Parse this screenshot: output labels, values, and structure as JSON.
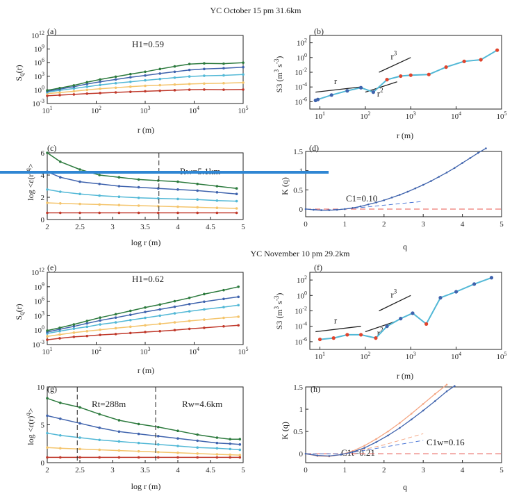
{
  "colors": {
    "q1": "#c0392b",
    "q2": "#f4c46b",
    "q3": "#52b8d6",
    "q4": "#3f63ad",
    "q5": "#2c7a3d",
    "s3": "#52b8d6",
    "s3_marker": "#e0442d",
    "fit": "#3f63ad",
    "fit_dash": "#4f79d6",
    "baseline": "#e8554e",
    "c1t_curve": "#f4a582",
    "overlay_bar": "#2f86d3"
  },
  "section_titles": [
    "YC October 15 pm  31.6km",
    "YC November 10 pm  29.2km"
  ],
  "chart_data": [
    {
      "id": "a",
      "type": "line",
      "panel_label": "(a)",
      "annotation": "H1=0.59",
      "xlabel": "r (m)",
      "ylabel": "S_q(r)",
      "ylabel_main": "S",
      "ylabel_sub": "q",
      "ylabel_rest": "(r)",
      "xscale": "log",
      "yscale": "log",
      "xlim": [
        10,
        100000
      ],
      "ylim": [
        0.001,
        1000000000000.0
      ],
      "x_ticks": [
        {
          "v": 10,
          "b": "10",
          "e": "1"
        },
        {
          "v": 100,
          "b": "10",
          "e": "2"
        },
        {
          "v": 1000,
          "b": "10",
          "e": "3"
        },
        {
          "v": 10000,
          "b": "10",
          "e": "4"
        },
        {
          "v": 100000,
          "b": "10",
          "e": "5"
        }
      ],
      "y_ticks": [
        {
          "v": 0.001,
          "b": "10",
          "e": "-3"
        },
        {
          "v": 1,
          "b": "10",
          "e": "0"
        },
        {
          "v": 1000,
          "b": "10",
          "e": "3"
        },
        {
          "v": 1000000,
          "b": "10",
          "e": "6"
        },
        {
          "v": 1000000000,
          "b": "10",
          "e": "9"
        },
        {
          "v": 1000000000000.0,
          "b": "10",
          "e": "12"
        }
      ],
      "x": [
        10,
        18,
        35,
        65,
        120,
        250,
        500,
        1000,
        2000,
        4000,
        8000,
        16000,
        40000,
        100000
      ],
      "series": [
        {
          "values": [
            0.05,
            0.07,
            0.1,
            0.15,
            0.2,
            0.28,
            0.38,
            0.5,
            0.65,
            0.85,
            1.1,
            1.2,
            1.1,
            1.2
          ]
        },
        {
          "values": [
            0.15,
            0.25,
            0.5,
            1,
            1.8,
            3,
            5,
            8,
            11,
            15,
            20,
            25,
            30,
            40
          ]
        },
        {
          "values": [
            0.3,
            0.8,
            2,
            5,
            12,
            30,
            60,
            130,
            250,
            500,
            900,
            1300,
            1600,
            2500
          ]
        },
        {
          "values": [
            0.5,
            1.5,
            5,
            20,
            60,
            200,
            600,
            1500,
            4000,
            10000,
            25000,
            40000,
            60000,
            100000
          ]
        },
        {
          "values": [
            0.8,
            2.5,
            10,
            50,
            200,
            800,
            3000,
            10000,
            40000,
            150000,
            500000,
            700000,
            600000,
            1000000
          ]
        }
      ]
    },
    {
      "id": "b",
      "type": "line",
      "panel_label": "(b)",
      "xlabel": "r (m)",
      "ylabel": "S3 (m^3 s^-3)",
      "ylabel_pre": "S3 (m",
      "ylabel_exp1": "3",
      "ylabel_mid": " s",
      "ylabel_exp2": "-3",
      "ylabel_post": ")",
      "xscale": "log",
      "yscale": "log",
      "xlim": [
        6,
        100000
      ],
      "ylim": [
        1e-07,
        1000
      ],
      "x_ticks": [
        {
          "v": 10,
          "b": "10",
          "e": "1"
        },
        {
          "v": 100,
          "b": "10",
          "e": "2"
        },
        {
          "v": 1000,
          "b": "10",
          "e": "3"
        },
        {
          "v": 10000,
          "b": "10",
          "e": "4"
        },
        {
          "v": 100000,
          "b": "10",
          "e": "5"
        }
      ],
      "y_ticks": [
        {
          "v": 1e-06,
          "b": "10",
          "e": "-6"
        },
        {
          "v": 0.0001,
          "b": "10",
          "e": "-4"
        },
        {
          "v": 0.01,
          "b": "10",
          "e": "-2"
        },
        {
          "v": 1,
          "b": "10",
          "e": "0"
        },
        {
          "v": 100,
          "b": "10",
          "e": "2"
        }
      ],
      "x": [
        8,
        9,
        18,
        40,
        80,
        150,
        300,
        600,
        1000,
        2500,
        6000,
        15000,
        35000,
        80000
      ],
      "values": [
        1.5e-06,
        2e-06,
        8e-06,
        3e-05,
        8e-05,
        2e-05,
        0.001,
        0.003,
        0.004,
        0.005,
        0.05,
        0.3,
        0.5,
        10
      ],
      "markers": [
        0,
        0,
        0,
        0,
        0,
        0,
        1,
        1,
        1,
        1,
        1,
        1,
        1,
        1
      ],
      "ref_lines": [
        {
          "label": "r",
          "exp_label": "",
          "x": [
            8,
            80
          ],
          "y": [
            2e-05,
            0.0001
          ]
        },
        {
          "label": "r",
          "exp_label": "2",
          "x": [
            100,
            500
          ],
          "y": [
            2e-05,
            0.0005
          ]
        },
        {
          "label": "r",
          "exp_label": "3",
          "x": [
            200,
            1000
          ],
          "y": [
            0.01,
            1
          ]
        }
      ]
    },
    {
      "id": "c",
      "type": "line",
      "panel_label": "(c)",
      "annotation": "Rw=5.1km",
      "xlabel": "log r (m)",
      "ylabel": "log <ε(r)^q>",
      "ylabel_text": "log <ε(r)",
      "ylabel_exp": "q",
      "ylabel_end": ">",
      "xlim": [
        2,
        5
      ],
      "ylim": [
        0,
        6
      ],
      "x_ticks": [
        2,
        2.5,
        3,
        3.5,
        4,
        4.5,
        5
      ],
      "y_ticks": [
        0,
        2,
        4,
        6
      ],
      "vlines": [
        3.71
      ],
      "x": [
        2,
        2.2,
        2.5,
        2.8,
        3.1,
        3.4,
        3.7,
        4.0,
        4.3,
        4.6,
        4.9
      ],
      "series": [
        {
          "values": [
            0.6,
            0.6,
            0.6,
            0.6,
            0.6,
            0.6,
            0.6,
            0.6,
            0.6,
            0.6,
            0.6
          ]
        },
        {
          "values": [
            1.5,
            1.45,
            1.4,
            1.35,
            1.3,
            1.25,
            1.2,
            1.15,
            1.1,
            1.05,
            1.0
          ]
        },
        {
          "values": [
            2.7,
            2.5,
            2.3,
            2.15,
            2.05,
            1.95,
            1.9,
            1.85,
            1.8,
            1.7,
            1.65
          ]
        },
        {
          "values": [
            4.3,
            3.8,
            3.4,
            3.2,
            3.0,
            2.9,
            2.8,
            2.7,
            2.6,
            2.45,
            2.3
          ]
        },
        {
          "values": [
            6.0,
            5.2,
            4.5,
            4.0,
            3.8,
            3.6,
            3.5,
            3.4,
            3.2,
            3.0,
            2.8
          ]
        }
      ]
    },
    {
      "id": "d",
      "type": "line",
      "panel_label": "(d)",
      "annotation": "C1=0.10",
      "xlabel": "q",
      "ylabel": "K (q)",
      "xlim": [
        0,
        5
      ],
      "ylim": [
        -0.2,
        1.5
      ],
      "x_ticks": [
        0,
        1,
        2,
        3,
        4,
        5
      ],
      "y_ticks": [
        0,
        0.5,
        1,
        1.5
      ],
      "x": [
        0,
        0.2,
        0.4,
        0.6,
        0.8,
        1.0,
        1.2,
        1.4,
        1.6,
        1.8,
        2.0,
        2.2,
        2.4,
        2.6,
        2.8,
        3.0,
        3.2,
        3.4,
        3.6,
        3.8,
        4.0,
        4.2,
        4.4,
        4.6
      ],
      "values": [
        0,
        -0.02,
        -0.03,
        -0.03,
        -0.02,
        0,
        0.03,
        0.07,
        0.12,
        0.17,
        0.23,
        0.3,
        0.37,
        0.45,
        0.54,
        0.63,
        0.73,
        0.84,
        0.95,
        1.07,
        1.2,
        1.33,
        1.46,
        1.58
      ],
      "fit_x": [
        0,
        0.5,
        1.0,
        1.5,
        2.0,
        2.5,
        3.0
      ],
      "fit_values": [
        0,
        -0.025,
        0,
        0.05,
        0.1,
        0.15,
        0.2
      ],
      "baseline": 0
    },
    {
      "id": "e",
      "type": "line",
      "panel_label": "(e)",
      "annotation": "H1=0.62",
      "xlabel": "r (m)",
      "ylabel": "S_q(r)",
      "ylabel_main": "S",
      "ylabel_sub": "q",
      "ylabel_rest": "(r)",
      "xscale": "log",
      "yscale": "log",
      "xlim": [
        10,
        100000
      ],
      "ylim": [
        0.001,
        1000000000000.0
      ],
      "x_ticks": [
        {
          "v": 10,
          "b": "10",
          "e": "1"
        },
        {
          "v": 100,
          "b": "10",
          "e": "2"
        },
        {
          "v": 1000,
          "b": "10",
          "e": "3"
        },
        {
          "v": 10000,
          "b": "10",
          "e": "4"
        },
        {
          "v": 100000,
          "b": "10",
          "e": "5"
        }
      ],
      "y_ticks": [
        {
          "v": 0.001,
          "b": "10",
          "e": "-3"
        },
        {
          "v": 1,
          "b": "10",
          "e": "0"
        },
        {
          "v": 1000,
          "b": "10",
          "e": "3"
        },
        {
          "v": 1000000,
          "b": "10",
          "e": "6"
        },
        {
          "v": 1000000000,
          "b": "10",
          "e": "9"
        },
        {
          "v": 1000000000000.0,
          "b": "10",
          "e": "12"
        }
      ],
      "x": [
        10,
        18,
        35,
        65,
        120,
        250,
        500,
        1000,
        2000,
        4000,
        8000,
        16000,
        40000,
        80000
      ],
      "series": [
        {
          "values": [
            0.01,
            0.02,
            0.04,
            0.06,
            0.1,
            0.15,
            0.25,
            0.4,
            0.6,
            1,
            1.8,
            3,
            6,
            10
          ]
        },
        {
          "values": [
            0.05,
            0.12,
            0.3,
            0.6,
            1.2,
            2.5,
            5,
            10,
            20,
            40,
            80,
            150,
            350,
            600
          ]
        },
        {
          "values": [
            0.2,
            0.6,
            2,
            5,
            15,
            40,
            120,
            350,
            1000,
            3000,
            8000,
            20000,
            60000,
            150000
          ]
        },
        {
          "values": [
            0.4,
            1.5,
            6,
            25,
            100,
            400,
            1500,
            6000,
            20000,
            70000,
            250000,
            800000,
            3000000,
            8000000
          ]
        },
        {
          "values": [
            0.8,
            3,
            15,
            80,
            400,
            2000,
            10000,
            50000,
            200000,
            1000000,
            5000000,
            30000000,
            200000000,
            1000000000
          ]
        }
      ]
    },
    {
      "id": "f",
      "type": "line",
      "panel_label": "(f)",
      "xlabel": "r (m)",
      "ylabel": "S3 (m^3 s^-3)",
      "ylabel_pre": "S3 (m",
      "ylabel_exp1": "3",
      "ylabel_mid": " s",
      "ylabel_exp2": "-3",
      "ylabel_post": ")",
      "xscale": "log",
      "yscale": "log",
      "xlim": [
        6,
        100000
      ],
      "ylim": [
        1e-07,
        1000
      ],
      "x_ticks": [
        {
          "v": 10,
          "b": "10",
          "e": "1"
        },
        {
          "v": 100,
          "b": "10",
          "e": "2"
        },
        {
          "v": 1000,
          "b": "10",
          "e": "3"
        },
        {
          "v": 10000,
          "b": "10",
          "e": "4"
        },
        {
          "v": 100000,
          "b": "10",
          "e": "5"
        }
      ],
      "y_ticks": [
        {
          "v": 1e-06,
          "b": "10",
          "e": "-6"
        },
        {
          "v": 0.0001,
          "b": "10",
          "e": "-4"
        },
        {
          "v": 0.01,
          "b": "10",
          "e": "-2"
        },
        {
          "v": 1,
          "b": "10",
          "e": "0"
        },
        {
          "v": 100,
          "b": "10",
          "e": "2"
        }
      ],
      "x": [
        10,
        20,
        40,
        80,
        170,
        300,
        600,
        1100,
        2200,
        4500,
        10000,
        25000,
        60000
      ],
      "values": [
        2e-06,
        3e-06,
        8e-06,
        8e-06,
        3e-06,
        0.0001,
        0.001,
        0.005,
        0.0002,
        0.5,
        3,
        30,
        200
      ],
      "markers": [
        1,
        1,
        1,
        1,
        1,
        0,
        0,
        0,
        1,
        0,
        0,
        0,
        0
      ],
      "ref_lines": [
        {
          "label": "r",
          "exp_label": "",
          "x": [
            8,
            80
          ],
          "y": [
            2e-05,
            0.0001
          ]
        },
        {
          "label": "r",
          "exp_label": "2",
          "x": [
            100,
            500
          ],
          "y": [
            2e-05,
            0.0005
          ]
        },
        {
          "label": "r",
          "exp_label": "3",
          "x": [
            200,
            1000
          ],
          "y": [
            0.01,
            1
          ]
        }
      ]
    },
    {
      "id": "g",
      "type": "line",
      "panel_label": "(g)",
      "annotation": "Rt=288m",
      "annotation2": "Rw=4.6km",
      "xlabel": "log r (m)",
      "ylabel": "log <ε(r)^q>",
      "ylabel_text": "log <ε(r)",
      "ylabel_exp": "q",
      "ylabel_end": ">",
      "xlim": [
        2,
        5
      ],
      "ylim": [
        0,
        10
      ],
      "x_ticks": [
        2,
        2.5,
        3,
        3.5,
        4,
        4.5,
        5
      ],
      "y_ticks": [
        0,
        5,
        10
      ],
      "vlines": [
        2.46,
        3.66
      ],
      "x": [
        2,
        2.2,
        2.5,
        2.8,
        3.1,
        3.4,
        3.7,
        4.0,
        4.3,
        4.6,
        4.8,
        4.95
      ],
      "series": [
        {
          "values": [
            0.7,
            0.7,
            0.7,
            0.7,
            0.7,
            0.7,
            0.7,
            0.7,
            0.7,
            0.7,
            0.7,
            0.7
          ]
        },
        {
          "values": [
            2.0,
            1.9,
            1.8,
            1.7,
            1.6,
            1.5,
            1.4,
            1.3,
            1.2,
            1.1,
            1.05,
            1.0
          ]
        },
        {
          "values": [
            3.9,
            3.6,
            3.3,
            3.0,
            2.8,
            2.6,
            2.4,
            2.2,
            2.0,
            1.9,
            1.8,
            1.7
          ]
        },
        {
          "values": [
            6.2,
            5.8,
            5.2,
            4.6,
            4.1,
            3.8,
            3.5,
            3.2,
            2.9,
            2.6,
            2.5,
            2.4
          ]
        },
        {
          "values": [
            8.5,
            7.9,
            7.3,
            6.4,
            5.6,
            5.1,
            4.7,
            4.2,
            3.7,
            3.3,
            3.1,
            3.1
          ]
        }
      ]
    },
    {
      "id": "h",
      "type": "line",
      "panel_label": "(h)",
      "annotation": "C1t=0.21",
      "annotation2": "C1w=0.16",
      "xlabel": "q",
      "ylabel": "K (q)",
      "xlim": [
        0,
        5
      ],
      "ylim": [
        -0.2,
        1.5
      ],
      "x_ticks": [
        0,
        1,
        2,
        3,
        4,
        5
      ],
      "y_ticks": [
        0,
        0.5,
        1,
        1.5
      ],
      "x_t": [
        0,
        0.3,
        0.6,
        0.9,
        1.2,
        1.5,
        1.8,
        2.1,
        2.4,
        2.7,
        3.0,
        3.3,
        3.6
      ],
      "values_t": [
        0,
        -0.05,
        -0.06,
        -0.02,
        0.06,
        0.18,
        0.33,
        0.5,
        0.69,
        0.9,
        1.12,
        1.34,
        1.55
      ],
      "x_w": [
        0,
        0.3,
        0.6,
        0.9,
        1.2,
        1.5,
        1.8,
        2.1,
        2.4,
        2.7,
        3.0,
        3.3,
        3.6,
        3.8
      ],
      "values_w": [
        0,
        -0.04,
        -0.05,
        -0.02,
        0.04,
        0.13,
        0.26,
        0.41,
        0.58,
        0.77,
        0.97,
        1.18,
        1.4,
        1.52
      ],
      "fit_t_x": [
        0,
        1,
        2,
        3
      ],
      "fit_t_values": [
        0,
        0,
        0.2,
        0.45
      ],
      "fit_w_x": [
        0,
        1,
        2,
        3
      ],
      "fit_w_values": [
        0,
        0,
        0.15,
        0.3
      ],
      "baseline": 0
    }
  ]
}
